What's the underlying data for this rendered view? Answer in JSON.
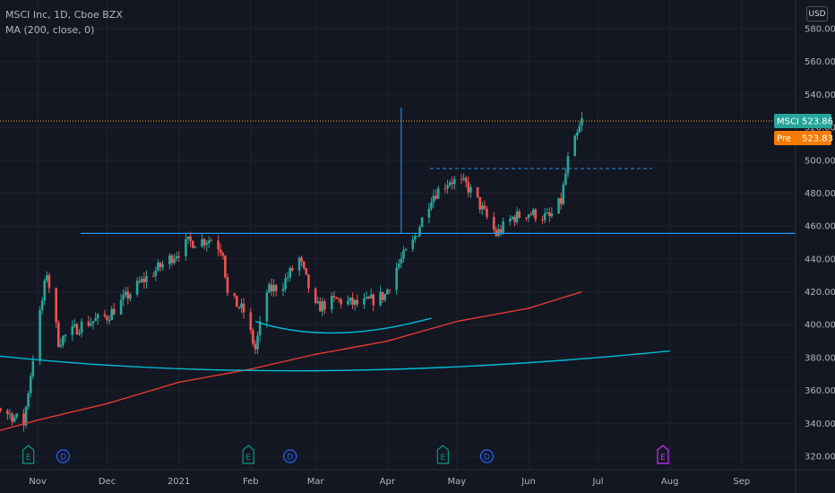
{
  "legend": {
    "symbol_line": "MSCI Inc, 1D, Cboe BZX",
    "indicator_line": "MA (200, close, 0)"
  },
  "currency": "USD",
  "price_tags": {
    "last": {
      "label": "MSCI",
      "value": "523.86",
      "color": "#26a69a"
    },
    "pre": {
      "label": "Pre",
      "value": "523.83",
      "color": "#f57c00"
    }
  },
  "colors": {
    "up": "#26a69a",
    "down": "#ef5350",
    "ma": "#e53935",
    "drawing": "#2196f3",
    "curve": "#00bcd4",
    "dividend": "#2962ff",
    "earnings": "#089981",
    "earnings_future": "#cc2fff"
  },
  "chart_data": {
    "type": "candlestick",
    "symbol": "MSCI Inc",
    "interval": "1D",
    "exchange": "Cboe BZX",
    "x_ticks": [
      "Nov",
      "Dec",
      "2021",
      "Feb",
      "Mar",
      "Apr",
      "May",
      "Jun",
      "Jul",
      "Aug",
      "Sep"
    ],
    "y_ticks": [
      320,
      340,
      360,
      380,
      400,
      420,
      440,
      460,
      480,
      500,
      520,
      540,
      560,
      580
    ],
    "ylim": [
      310,
      590
    ],
    "last_close": 523.86,
    "premarket": 523.83,
    "ohlc_anchors": [
      {
        "date": "2020-10-01",
        "close": 372
      },
      {
        "date": "2020-10-15",
        "close": 350
      },
      {
        "date": "2020-10-26",
        "close": 340
      },
      {
        "date": "2020-10-30",
        "close": 380
      },
      {
        "date": "2020-11-05",
        "close": 432
      },
      {
        "date": "2020-11-10",
        "close": 390
      },
      {
        "date": "2020-11-20",
        "close": 400
      },
      {
        "date": "2020-12-01",
        "close": 405
      },
      {
        "date": "2020-12-15",
        "close": 425
      },
      {
        "date": "2020-12-28",
        "close": 440
      },
      {
        "date": "2021-01-05",
        "close": 450
      },
      {
        "date": "2021-01-15",
        "close": 452
      },
      {
        "date": "2021-01-20",
        "close": 445
      },
      {
        "date": "2021-01-22",
        "close": 418
      },
      {
        "date": "2021-01-29",
        "close": 408
      },
      {
        "date": "2021-02-03",
        "close": 385
      },
      {
        "date": "2021-02-08",
        "close": 420
      },
      {
        "date": "2021-02-15",
        "close": 425
      },
      {
        "date": "2021-02-22",
        "close": 440
      },
      {
        "date": "2021-03-01",
        "close": 410
      },
      {
        "date": "2021-03-10",
        "close": 415
      },
      {
        "date": "2021-03-20",
        "close": 412
      },
      {
        "date": "2021-03-31",
        "close": 418
      },
      {
        "date": "2021-04-05",
        "close": 435
      },
      {
        "date": "2021-04-12",
        "close": 450
      },
      {
        "date": "2021-04-20",
        "close": 478
      },
      {
        "date": "2021-04-28",
        "close": 488
      },
      {
        "date": "2021-05-05",
        "close": 485
      },
      {
        "date": "2021-05-10",
        "close": 475
      },
      {
        "date": "2021-05-18",
        "close": 455
      },
      {
        "date": "2021-05-25",
        "close": 465
      },
      {
        "date": "2021-06-01",
        "close": 468
      },
      {
        "date": "2021-06-10",
        "close": 465
      },
      {
        "date": "2021-06-15",
        "close": 475
      },
      {
        "date": "2021-06-18",
        "close": 500
      },
      {
        "date": "2021-06-22",
        "close": 515
      },
      {
        "date": "2021-06-24",
        "close": 524
      }
    ],
    "ma200_points": [
      {
        "date": "2020-10-01",
        "value": 330
      },
      {
        "date": "2020-11-01",
        "value": 342
      },
      {
        "date": "2020-12-01",
        "value": 352
      },
      {
        "date": "2021-01-01",
        "value": 365
      },
      {
        "date": "2021-02-01",
        "value": 373
      },
      {
        "date": "2021-03-01",
        "value": 382
      },
      {
        "date": "2021-04-01",
        "value": 390
      },
      {
        "date": "2021-05-01",
        "value": 402
      },
      {
        "date": "2021-06-01",
        "value": 410
      },
      {
        "date": "2021-06-24",
        "value": 420
      }
    ],
    "drawings": {
      "horizontal_support": 455.5,
      "dashed_resistance": 495,
      "measure_line": {
        "date": "2021-04-07",
        "from": 455.5,
        "to": 532
      },
      "last_price_line": 523.86,
      "arc_large": [
        {
          "date": "2020-10-15",
          "value": 381
        },
        {
          "date": "2021-03-01",
          "value": 372
        },
        {
          "date": "2021-08-01",
          "value": 384
        }
      ],
      "arc_small": [
        {
          "date": "2021-02-03",
          "value": 402
        },
        {
          "date": "2021-03-10",
          "value": 395
        },
        {
          "date": "2021-04-20",
          "value": 404
        }
      ]
    },
    "events": [
      {
        "type": "E",
        "date": "2020-10-28"
      },
      {
        "type": "D",
        "date": "2020-11-12"
      },
      {
        "type": "E",
        "date": "2021-01-31"
      },
      {
        "type": "D",
        "date": "2021-02-18"
      },
      {
        "type": "E",
        "date": "2021-04-25"
      },
      {
        "type": "D",
        "date": "2021-05-14"
      },
      {
        "type": "E",
        "date": "2021-07-29"
      }
    ]
  }
}
